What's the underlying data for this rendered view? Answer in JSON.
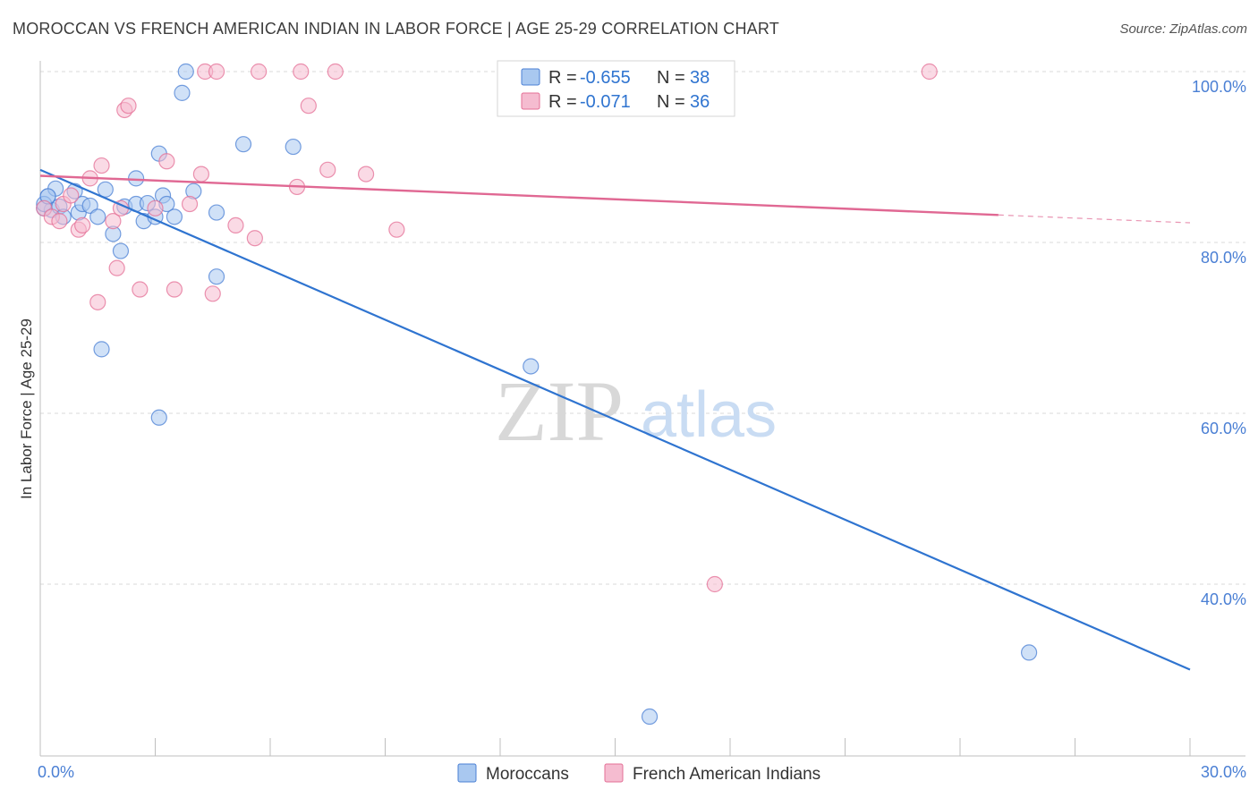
{
  "title": "MOROCCAN VS FRENCH AMERICAN INDIAN IN LABOR FORCE | AGE 25-29 CORRELATION CHART",
  "source": "Source: ZipAtlas.com",
  "watermark": {
    "zip": "ZIP",
    "atlas": "atlas"
  },
  "colors": {
    "blue": "#4a7fd4",
    "blue_fill": "#a9c8f0",
    "blue_line": "#2f74d0",
    "pink": "#e46f96",
    "pink_fill": "#f5bcd0",
    "pink_line": "#e06893",
    "grid": "#d9d9d9",
    "axis": "#bfbfbf"
  },
  "legend": {
    "rows": [
      {
        "r_label": "R = ",
        "r_value": "-0.655",
        "n_label": "N = ",
        "n_value": "38"
      },
      {
        "r_label": "R = ",
        "r_value": "-0.071",
        "n_label": "N = ",
        "n_value": "36"
      }
    ]
  },
  "bottom_legend": [
    "Moroccans",
    "French American Indians"
  ],
  "chart_data": {
    "type": "scatter",
    "title": "MOROCCAN VS FRENCH AMERICAN INDIAN IN LABOR FORCE | AGE 25-29 CORRELATION CHART",
    "xlabel": "",
    "ylabel": "In Labor Force | Age 25-29",
    "xlim": [
      0,
      30
    ],
    "ylim": [
      22,
      102
    ],
    "x_tick_labels": [
      {
        "value": 0,
        "label": "0.0%"
      },
      {
        "value": 30,
        "label": "30.0%"
      }
    ],
    "x_minor_ticks": [
      0,
      3,
      6,
      9,
      12,
      15,
      18,
      21,
      24,
      27,
      30
    ],
    "y_ticks": [
      {
        "value": 100,
        "label": "100.0%"
      },
      {
        "value": 80,
        "label": "80.0%"
      },
      {
        "value": 60,
        "label": "60.0%"
      },
      {
        "value": 40,
        "label": "40.0%"
      }
    ],
    "grid": true,
    "legend_position": "top-center",
    "series": [
      {
        "name": "Moroccans",
        "color": "#4a7fd4",
        "x": [
          0.1,
          0.2,
          0.3,
          0.5,
          0.6,
          0.9,
          1.0,
          1.1,
          1.3,
          1.5,
          1.6,
          1.9,
          2.1,
          2.2,
          2.5,
          2.5,
          2.7,
          2.8,
          3.0,
          3.1,
          3.1,
          3.2,
          3.3,
          3.5,
          3.7,
          4.0,
          4.6,
          4.6,
          5.3,
          6.6,
          0.1,
          0.4,
          1.7,
          3.8,
          12.8,
          25.8,
          15.9,
          0.2
        ],
        "y": [
          84.0,
          85.4,
          83.8,
          84.2,
          83.0,
          86.0,
          83.5,
          84.5,
          84.3,
          83.0,
          67.5,
          81.0,
          79.0,
          84.2,
          84.5,
          87.5,
          82.5,
          84.6,
          83.0,
          59.5,
          90.4,
          85.5,
          84.5,
          83.0,
          97.5,
          86.0,
          76.0,
          83.5,
          91.5,
          91.2,
          84.5,
          86.3,
          86.2,
          100.0,
          65.5,
          32.0,
          24.5,
          85.4
        ]
      },
      {
        "name": "French American Indians",
        "color": "#e46f96",
        "x": [
          0.1,
          0.3,
          0.5,
          0.6,
          0.8,
          1.0,
          1.1,
          1.3,
          1.5,
          1.6,
          1.9,
          2.0,
          2.1,
          2.2,
          2.3,
          2.6,
          3.0,
          3.3,
          3.5,
          3.9,
          4.2,
          4.3,
          4.6,
          4.5,
          5.1,
          5.6,
          5.7,
          6.7,
          6.8,
          7.0,
          7.5,
          7.7,
          8.5,
          23.2,
          9.3,
          17.6
        ],
        "y": [
          84.0,
          83.0,
          82.5,
          84.5,
          85.5,
          81.5,
          82.0,
          87.5,
          73.0,
          89.0,
          82.5,
          77.0,
          84.0,
          95.5,
          96.0,
          74.5,
          84.0,
          89.5,
          74.5,
          84.5,
          88.0,
          100.0,
          100.0,
          74.0,
          82.0,
          80.5,
          100.0,
          86.5,
          100.0,
          96.0,
          88.5,
          100.0,
          88.0,
          100.0,
          81.5,
          40.0
        ]
      }
    ],
    "trend_lines": [
      {
        "series": "Moroccans",
        "x": [
          0,
          30
        ],
        "y": [
          88.5,
          30.0
        ],
        "dashed_from": null
      },
      {
        "series": "French American Indians",
        "x": [
          0,
          30
        ],
        "y": [
          87.8,
          82.3
        ],
        "dashed_from": 25
      }
    ]
  }
}
